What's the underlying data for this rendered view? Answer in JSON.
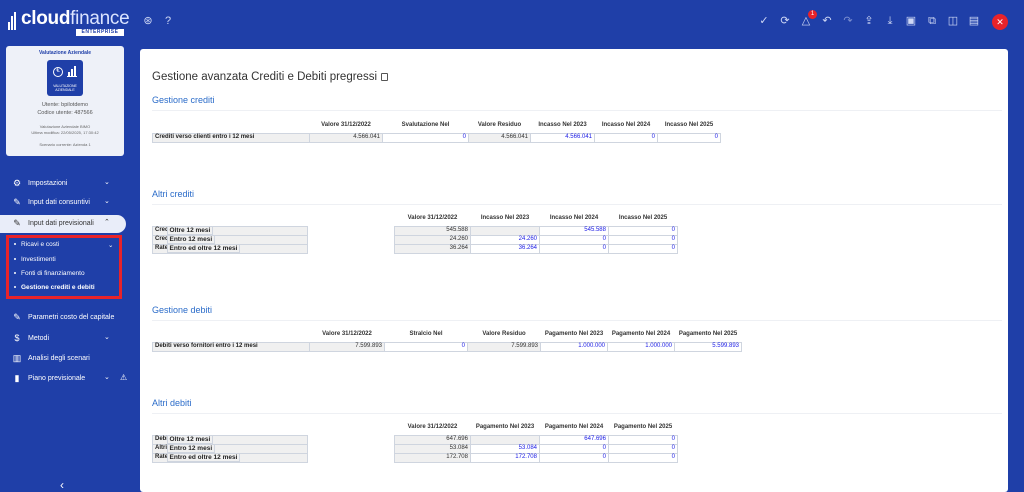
{
  "app": {
    "brand_bold": "cloud",
    "brand_light": "finance",
    "brand_tag": "ENTERPRISE"
  },
  "profile": {
    "title": "Valutazione Aziendale",
    "badge_label": "VALUTAZIONE AZIENDALE",
    "user": "Utente: bpilotdemo",
    "code": "Codice utente: 487566",
    "module": "Valutazione Aziendale BIMO",
    "last_edit": "Ultima modifica: 22/05/2025, 17:30:42",
    "scenario": "Scenario corrente: Azienda 1"
  },
  "nav": {
    "impostazioni": "Impostazioni",
    "consuntivi": "Input dati consuntivi",
    "previsionali": "Input dati previsionali",
    "submenu": [
      "Ricavi e costi",
      "Investimenti",
      "Fonti di finanziamento",
      "Gestione crediti e debiti"
    ],
    "parametri": "Parametri costo del capitale",
    "metodi": "Metodi",
    "analisi": "Analisi degli scenari",
    "piano": "Piano previsionale"
  },
  "topbar": {
    "notification_count": "1",
    "icons": [
      "dashboard-icon",
      "help-icon",
      "check-icon",
      "refresh-icon",
      "alert-icon",
      "undo-icon",
      "redo-icon",
      "upload-icon",
      "download-icon",
      "save-icon",
      "copy-icon",
      "panel-icon",
      "export-icon",
      "close-icon"
    ]
  },
  "page": {
    "title": "Gestione avanzata Crediti e Debiti pregressi"
  },
  "gestione_crediti": {
    "title": "Gestione crediti",
    "headers": [
      "Valore 31/12/2022",
      "Svalutazione Nel",
      "Valore Residuo",
      "Incasso Nel 2023",
      "Incasso Nel 2024",
      "Incasso Nel 2025"
    ],
    "row_label": "Crediti verso clienti entro i 12 mesi",
    "values": [
      "4.566.041",
      "0",
      "4.566.041",
      "4.566.041",
      "0",
      "0"
    ]
  },
  "altri_crediti": {
    "title": "Altri crediti",
    "headers": [
      "Valore 31/12/2022",
      "Incasso Nel 2023",
      "Incasso Nel 2024",
      "Incasso Nel 2025"
    ],
    "rows": [
      {
        "label": "Crediti v/clienti",
        "sub": "Oltre 12 mesi",
        "values": [
          "545.588",
          "",
          "545.588",
          "0"
        ]
      },
      {
        "label": "Crediti v/altri",
        "sub": "Entro 12 mesi",
        "values": [
          "24.260",
          "24.260",
          "0",
          "0"
        ]
      },
      {
        "label": "Ratei e risconti",
        "sub": "Entro ed oltre 12 mesi",
        "values": [
          "36.264",
          "36.264",
          "0",
          "0"
        ]
      }
    ]
  },
  "gestione_debiti": {
    "title": "Gestione debiti",
    "headers": [
      "Valore 31/12/2022",
      "Stralcio Nel",
      "Valore Residuo",
      "Pagamento Nel 2023",
      "Pagamento Nel 2024",
      "Pagamento Nel 2025"
    ],
    "row_label": "Debiti verso fornitori entro i 12 mesi",
    "values": [
      "7.599.893",
      "0",
      "7.599.893",
      "1.000.000",
      "1.000.000",
      "5.599.893"
    ]
  },
  "altri_debiti": {
    "title": "Altri debiti",
    "headers": [
      "Valore 31/12/2022",
      "Pagamento Nel 2023",
      "Pagamento Nel 2024",
      "Pagamento Nel 2025"
    ],
    "rows": [
      {
        "label": "Debiti v/fornitori",
        "sub": "Oltre 12 mesi",
        "values": [
          "647.696",
          "",
          "647.696",
          "0"
        ]
      },
      {
        "label": "Altri Debiti",
        "sub": "Entro 12 mesi",
        "values": [
          "53.084",
          "53.084",
          "0",
          "0"
        ]
      },
      {
        "label": "Ratei e risconti",
        "sub": "Entro ed oltre 12 mesi",
        "values": [
          "172.708",
          "172.708",
          "0",
          "0"
        ]
      }
    ]
  }
}
